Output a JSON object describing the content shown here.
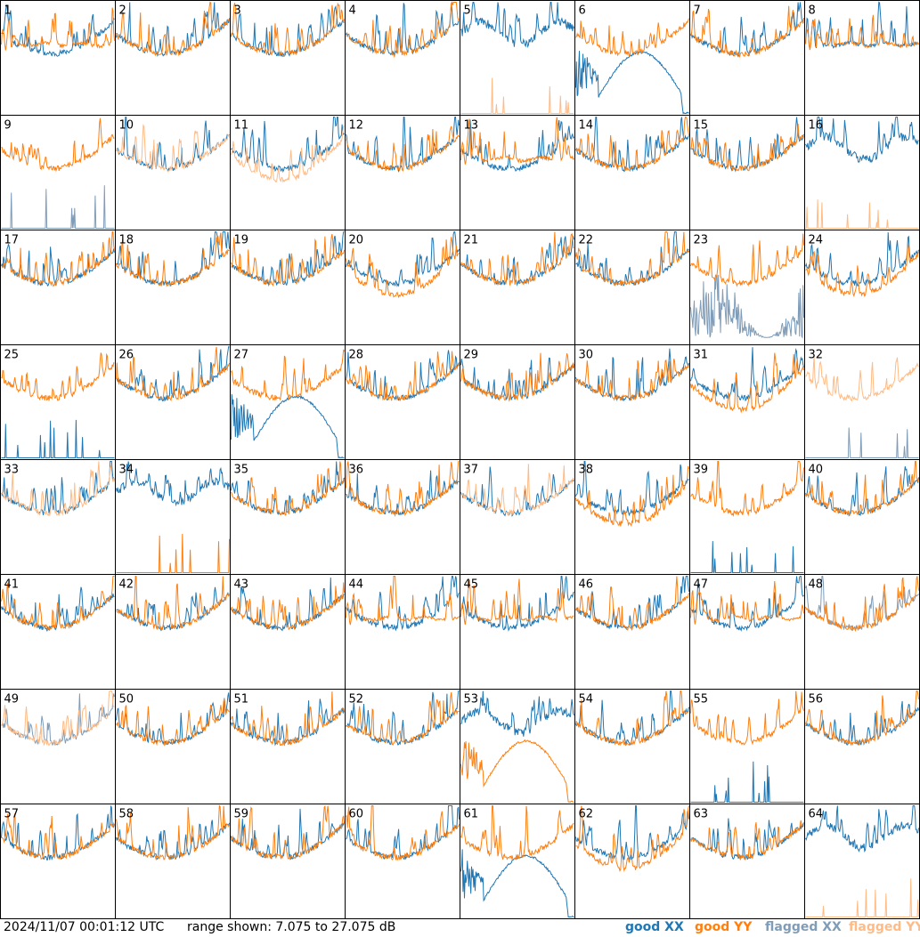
{
  "footer": {
    "timestamp": "2024/11/07 00:01:12 UTC",
    "range_text": "range shown: 7.075 to 27.075 dB"
  },
  "legend": {
    "good_xx": "good XX",
    "good_yy": "good YY",
    "flagged_xx": "flagged XX",
    "flagged_yy": "flagged YY"
  },
  "colors": {
    "good_xx": "#1f77b4",
    "good_yy": "#ff7f0e",
    "flagged_xx": "#7f9cb8",
    "flagged_yy": "#ffbb85",
    "grid_line": "#000000"
  },
  "chart_data": {
    "type": "line",
    "description_units": "dB",
    "ylim": [
      7.075,
      27.075
    ],
    "grid": {
      "rows": 8,
      "cols": 8
    },
    "panels": [
      {
        "label": "1",
        "xx": "good",
        "yy": "good",
        "xx_pattern": "normal",
        "yy_pattern": "flat"
      },
      {
        "label": "2",
        "xx": "good",
        "yy": "good",
        "xx_pattern": "normal",
        "yy_pattern": "normal"
      },
      {
        "label": "3",
        "xx": "good",
        "yy": "good",
        "xx_pattern": "normal",
        "yy_pattern": "normal"
      },
      {
        "label": "4",
        "xx": "good",
        "yy": "good",
        "xx_pattern": "normal",
        "yy_pattern": "normal"
      },
      {
        "label": "5",
        "xx": "good",
        "yy": "flagged",
        "xx_pattern": "high",
        "yy_pattern": "spikes"
      },
      {
        "label": "6",
        "xx": "good",
        "yy": "good",
        "xx_pattern": "arch",
        "yy_pattern": "normal"
      },
      {
        "label": "7",
        "xx": "good",
        "yy": "good",
        "xx_pattern": "normal",
        "yy_pattern": "normal"
      },
      {
        "label": "8",
        "xx": "good",
        "yy": "good",
        "xx_pattern": "flat",
        "yy_pattern": "flat"
      },
      {
        "label": "9",
        "xx": "flagged",
        "yy": "good",
        "xx_pattern": "spikes",
        "yy_pattern": "normal"
      },
      {
        "label": "10",
        "xx": "good",
        "yy": "flagged",
        "xx_pattern": "normal",
        "yy_pattern": "normal"
      },
      {
        "label": "11",
        "xx": "good",
        "yy": "flagged",
        "xx_pattern": "normal",
        "yy_pattern": "deep"
      },
      {
        "label": "12",
        "xx": "good",
        "yy": "good",
        "xx_pattern": "normal",
        "yy_pattern": "normal"
      },
      {
        "label": "13",
        "xx": "good",
        "yy": "good",
        "xx_pattern": "normal",
        "yy_pattern": "flat"
      },
      {
        "label": "14",
        "xx": "good",
        "yy": "good",
        "xx_pattern": "normal",
        "yy_pattern": "normal"
      },
      {
        "label": "15",
        "xx": "good",
        "yy": "good",
        "xx_pattern": "normal",
        "yy_pattern": "normal"
      },
      {
        "label": "16",
        "xx": "good",
        "yy": "flagged",
        "xx_pattern": "high",
        "yy_pattern": "spikes"
      },
      {
        "label": "17",
        "xx": "good",
        "yy": "good",
        "xx_pattern": "normal",
        "yy_pattern": "normal"
      },
      {
        "label": "18",
        "xx": "good",
        "yy": "good",
        "xx_pattern": "normal",
        "yy_pattern": "normal"
      },
      {
        "label": "19",
        "xx": "good",
        "yy": "good",
        "xx_pattern": "normal",
        "yy_pattern": "normal"
      },
      {
        "label": "20",
        "xx": "good",
        "yy": "good",
        "xx_pattern": "normal",
        "yy_pattern": "deep"
      },
      {
        "label": "21",
        "xx": "good",
        "yy": "good",
        "xx_pattern": "normal",
        "yy_pattern": "normal"
      },
      {
        "label": "22",
        "xx": "good",
        "yy": "good",
        "xx_pattern": "normal",
        "yy_pattern": "normal"
      },
      {
        "label": "23",
        "xx": "flagged",
        "yy": "good",
        "xx_pattern": "noisy",
        "yy_pattern": "normal"
      },
      {
        "label": "24",
        "xx": "good",
        "yy": "good",
        "xx_pattern": "normal",
        "yy_pattern": "deep"
      },
      {
        "label": "25",
        "xx": "good",
        "yy": "good",
        "xx_pattern": "spikes",
        "yy_pattern": "normal"
      },
      {
        "label": "26",
        "xx": "good",
        "yy": "good",
        "xx_pattern": "normal",
        "yy_pattern": "normal"
      },
      {
        "label": "27",
        "xx": "good",
        "yy": "good",
        "xx_pattern": "arch",
        "yy_pattern": "normal"
      },
      {
        "label": "28",
        "xx": "good",
        "yy": "good",
        "xx_pattern": "normal",
        "yy_pattern": "normal"
      },
      {
        "label": "29",
        "xx": "good",
        "yy": "good",
        "xx_pattern": "normal",
        "yy_pattern": "normal"
      },
      {
        "label": "30",
        "xx": "good",
        "yy": "good",
        "xx_pattern": "normal",
        "yy_pattern": "normal"
      },
      {
        "label": "31",
        "xx": "good",
        "yy": "good",
        "xx_pattern": "normal",
        "yy_pattern": "deep"
      },
      {
        "label": "32",
        "xx": "flagged",
        "yy": "flagged",
        "xx_pattern": "spikes",
        "yy_pattern": "normal"
      },
      {
        "label": "33",
        "xx": "good",
        "yy": "flagged",
        "xx_pattern": "normal",
        "yy_pattern": "normal"
      },
      {
        "label": "34",
        "xx": "good",
        "yy": "good",
        "xx_pattern": "high",
        "yy_pattern": "spikes"
      },
      {
        "label": "35",
        "xx": "good",
        "yy": "good",
        "xx_pattern": "normal",
        "yy_pattern": "normal"
      },
      {
        "label": "36",
        "xx": "good",
        "yy": "good",
        "xx_pattern": "normal",
        "yy_pattern": "normal"
      },
      {
        "label": "37",
        "xx": "good",
        "yy": "flagged",
        "xx_pattern": "normal",
        "yy_pattern": "normal"
      },
      {
        "label": "38",
        "xx": "good",
        "yy": "good",
        "xx_pattern": "normal",
        "yy_pattern": "deep"
      },
      {
        "label": "39",
        "xx": "good",
        "yy": "good",
        "xx_pattern": "spikes",
        "yy_pattern": "normal"
      },
      {
        "label": "40",
        "xx": "good",
        "yy": "good",
        "xx_pattern": "normal",
        "yy_pattern": "normal"
      },
      {
        "label": "41",
        "xx": "good",
        "yy": "good",
        "xx_pattern": "normal",
        "yy_pattern": "normal"
      },
      {
        "label": "42",
        "xx": "good",
        "yy": "good",
        "xx_pattern": "normal",
        "yy_pattern": "normal"
      },
      {
        "label": "43",
        "xx": "good",
        "yy": "good",
        "xx_pattern": "normal",
        "yy_pattern": "normal"
      },
      {
        "label": "44",
        "xx": "good",
        "yy": "good",
        "xx_pattern": "normal",
        "yy_pattern": "flat"
      },
      {
        "label": "45",
        "xx": "good",
        "yy": "good",
        "xx_pattern": "normal",
        "yy_pattern": "flat"
      },
      {
        "label": "46",
        "xx": "good",
        "yy": "good",
        "xx_pattern": "normal",
        "yy_pattern": "normal"
      },
      {
        "label": "47",
        "xx": "good",
        "yy": "good",
        "xx_pattern": "normal",
        "yy_pattern": "flat"
      },
      {
        "label": "48",
        "xx": "flagged",
        "yy": "good",
        "xx_pattern": "normal",
        "yy_pattern": "normal"
      },
      {
        "label": "49",
        "xx": "flagged",
        "yy": "flagged",
        "xx_pattern": "normal",
        "yy_pattern": "normal"
      },
      {
        "label": "50",
        "xx": "good",
        "yy": "good",
        "xx_pattern": "normal",
        "yy_pattern": "normal"
      },
      {
        "label": "51",
        "xx": "good",
        "yy": "good",
        "xx_pattern": "normal",
        "yy_pattern": "normal"
      },
      {
        "label": "52",
        "xx": "good",
        "yy": "good",
        "xx_pattern": "normal",
        "yy_pattern": "normal"
      },
      {
        "label": "53",
        "xx": "good",
        "yy": "good",
        "xx_pattern": "high",
        "yy_pattern": "arch"
      },
      {
        "label": "54",
        "xx": "good",
        "yy": "good",
        "xx_pattern": "normal",
        "yy_pattern": "normal"
      },
      {
        "label": "55",
        "xx": "good",
        "yy": "good",
        "xx_pattern": "spikes",
        "yy_pattern": "normal"
      },
      {
        "label": "56",
        "xx": "good",
        "yy": "good",
        "xx_pattern": "normal",
        "yy_pattern": "normal"
      },
      {
        "label": "57",
        "xx": "good",
        "yy": "good",
        "xx_pattern": "normal",
        "yy_pattern": "normal"
      },
      {
        "label": "58",
        "xx": "good",
        "yy": "good",
        "xx_pattern": "normal",
        "yy_pattern": "normal"
      },
      {
        "label": "59",
        "xx": "good",
        "yy": "good",
        "xx_pattern": "normal",
        "yy_pattern": "normal"
      },
      {
        "label": "60",
        "xx": "good",
        "yy": "good",
        "xx_pattern": "normal",
        "yy_pattern": "normal"
      },
      {
        "label": "61",
        "xx": "good",
        "yy": "good",
        "xx_pattern": "arch",
        "yy_pattern": "normal"
      },
      {
        "label": "62",
        "xx": "good",
        "yy": "good",
        "xx_pattern": "normal",
        "yy_pattern": "deep"
      },
      {
        "label": "63",
        "xx": "good",
        "yy": "good",
        "xx_pattern": "normal",
        "yy_pattern": "normal"
      },
      {
        "label": "64",
        "xx": "good",
        "yy": "flagged",
        "xx_pattern": "high",
        "yy_pattern": "spikes"
      }
    ]
  }
}
